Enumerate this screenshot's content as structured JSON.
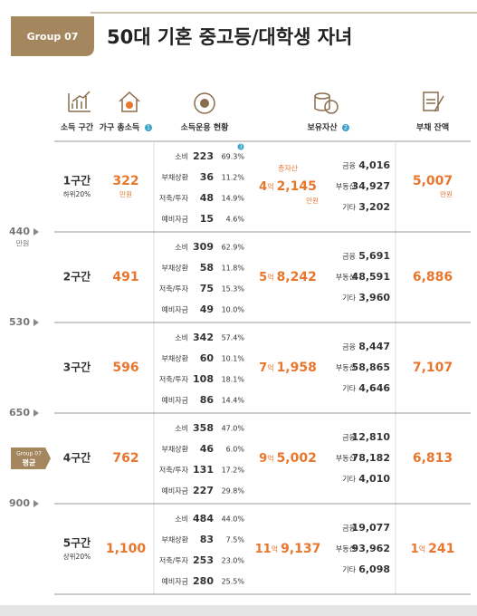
{
  "header": {
    "group_tag": "Group 07",
    "title": "50대 기혼 중고등/대학생 자녀"
  },
  "columns": {
    "income_bracket": "소득 구간",
    "household_income": "가구 총소득",
    "household_income_note": "1",
    "income_usage": "소득운용 현황",
    "assets": "보유자산",
    "assets_note": "2",
    "debt": "부채 잔액"
  },
  "units": {
    "man": "만원",
    "eok": "억",
    "total_assets": "총자산"
  },
  "usage_labels": [
    "소비",
    "부채상환",
    "저축/투자",
    "예비자금"
  ],
  "usage_note": "3",
  "asset_labels": [
    "금융",
    "부동산",
    "기타"
  ],
  "thresholds": [
    {
      "value": "440",
      "unit": "만원"
    },
    {
      "value": "530"
    },
    {
      "value": "650"
    },
    {
      "value": "900"
    }
  ],
  "average_tag": {
    "group": "Group 07",
    "label": "평균"
  },
  "rows": [
    {
      "bracket": "1구간",
      "bracket_sub": "하위20%",
      "income": "322",
      "usage": [
        [
          "223",
          "69.3%"
        ],
        [
          "36",
          "11.2%"
        ],
        [
          "48",
          "14.9%"
        ],
        [
          "15",
          "4.6%"
        ]
      ],
      "total_eok": "4",
      "total_man": "2,145",
      "assets": [
        "4,016",
        "34,927",
        "3,202"
      ],
      "debt": "5,007"
    },
    {
      "bracket": "2구간",
      "income": "491",
      "usage": [
        [
          "309",
          "62.9%"
        ],
        [
          "58",
          "11.8%"
        ],
        [
          "75",
          "15.3%"
        ],
        [
          "49",
          "10.0%"
        ]
      ],
      "total_eok": "5",
      "total_man": "8,242",
      "assets": [
        "5,691",
        "48,591",
        "3,960"
      ],
      "debt": "6,886"
    },
    {
      "bracket": "3구간",
      "income": "596",
      "usage": [
        [
          "342",
          "57.4%"
        ],
        [
          "60",
          "10.1%"
        ],
        [
          "108",
          "18.1%"
        ],
        [
          "86",
          "14.4%"
        ]
      ],
      "total_eok": "7",
      "total_man": "1,958",
      "assets": [
        "8,447",
        "58,865",
        "4,646"
      ],
      "debt": "7,107"
    },
    {
      "bracket": "4구간",
      "income": "762",
      "usage": [
        [
          "358",
          "47.0%"
        ],
        [
          "46",
          "6.0%"
        ],
        [
          "131",
          "17.2%"
        ],
        [
          "227",
          "29.8%"
        ]
      ],
      "total_eok": "9",
      "total_man": "5,002",
      "assets": [
        "12,810",
        "78,182",
        "4,010"
      ],
      "debt": "6,813"
    },
    {
      "bracket": "5구간",
      "bracket_sub": "상위20%",
      "income": "1,100",
      "usage": [
        [
          "484",
          "44.0%"
        ],
        [
          "83",
          "7.5%"
        ],
        [
          "253",
          "23.0%"
        ],
        [
          "280",
          "25.5%"
        ]
      ],
      "total_eok": "11",
      "total_man": "9,137",
      "assets": [
        "19,077",
        "93,962",
        "6,098"
      ],
      "debt_eok": "1",
      "debt": "241"
    }
  ]
}
